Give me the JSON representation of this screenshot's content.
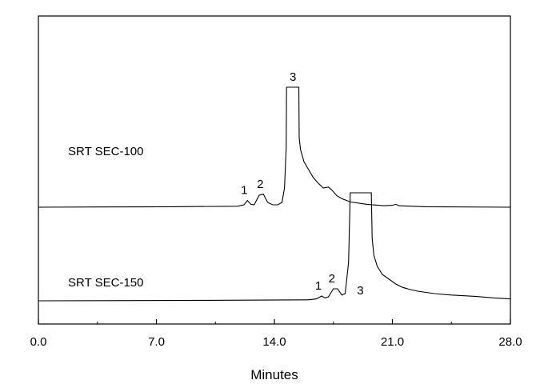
{
  "chart_data": {
    "type": "line",
    "xlabel": "Minutes",
    "xlim": [
      0,
      28
    ],
    "x_ticks": [
      "0.0",
      "7.0",
      "14.0",
      "21.0",
      "28.0"
    ],
    "series": [
      {
        "name": "SRT SEC-100",
        "baseline_y": 0,
        "points": [
          [
            0.0,
            0.0
          ],
          [
            8.0,
            0.01
          ],
          [
            11.8,
            0.02
          ],
          [
            12.2,
            0.05
          ],
          [
            12.4,
            0.14
          ],
          [
            12.6,
            0.06
          ],
          [
            12.8,
            0.05
          ],
          [
            13.1,
            0.25
          ],
          [
            13.35,
            0.27
          ],
          [
            13.6,
            0.1
          ],
          [
            13.9,
            0.05
          ],
          [
            14.2,
            0.05
          ],
          [
            14.45,
            0.1
          ],
          [
            14.6,
            0.4
          ],
          [
            14.7,
            1.25
          ],
          [
            14.72,
            2.5
          ],
          [
            15.45,
            2.5
          ],
          [
            15.47,
            1.45
          ],
          [
            15.55,
            1.2
          ],
          [
            15.75,
            0.95
          ],
          [
            16.0,
            0.8
          ],
          [
            16.3,
            0.62
          ],
          [
            16.6,
            0.5
          ],
          [
            16.9,
            0.4
          ],
          [
            17.2,
            0.42
          ],
          [
            17.4,
            0.36
          ],
          [
            17.7,
            0.24
          ],
          [
            18.0,
            0.18
          ],
          [
            18.5,
            0.11
          ],
          [
            19.5,
            0.06
          ],
          [
            20.5,
            0.03
          ],
          [
            21.0,
            0.04
          ],
          [
            21.2,
            0.06
          ],
          [
            21.4,
            0.03
          ],
          [
            23.0,
            0.01
          ],
          [
            28.0,
            0.0
          ]
        ],
        "peaks": [
          {
            "label": "1",
            "x": 12.4
          },
          {
            "label": "2",
            "x": 13.35
          },
          {
            "label": "3",
            "x": 15.1
          }
        ]
      },
      {
        "name": "SRT SEC-150",
        "baseline_y": -1.95,
        "points": [
          [
            0.0,
            0.0
          ],
          [
            10.0,
            0.01
          ],
          [
            16.0,
            0.02
          ],
          [
            16.5,
            0.04
          ],
          [
            16.8,
            0.1
          ],
          [
            17.0,
            0.06
          ],
          [
            17.2,
            0.08
          ],
          [
            17.5,
            0.25
          ],
          [
            17.75,
            0.25
          ],
          [
            18.0,
            0.12
          ],
          [
            18.2,
            0.15
          ],
          [
            18.4,
            0.8
          ],
          [
            18.5,
            2.25
          ],
          [
            19.75,
            2.25
          ],
          [
            19.8,
            1.3
          ],
          [
            19.9,
            0.95
          ],
          [
            20.1,
            0.72
          ],
          [
            20.4,
            0.55
          ],
          [
            20.8,
            0.45
          ],
          [
            21.2,
            0.35
          ],
          [
            21.6,
            0.28
          ],
          [
            22.0,
            0.24
          ],
          [
            22.5,
            0.2
          ],
          [
            23.5,
            0.15
          ],
          [
            24.5,
            0.12
          ],
          [
            26.0,
            0.09
          ],
          [
            27.0,
            0.06
          ],
          [
            28.0,
            0.04
          ]
        ],
        "peaks": [
          {
            "label": "1",
            "x": 16.8
          },
          {
            "label": "2",
            "x": 17.6
          },
          {
            "label": "3",
            "x": 19.1
          }
        ]
      }
    ],
    "grid": false,
    "legend": "inline-left"
  }
}
